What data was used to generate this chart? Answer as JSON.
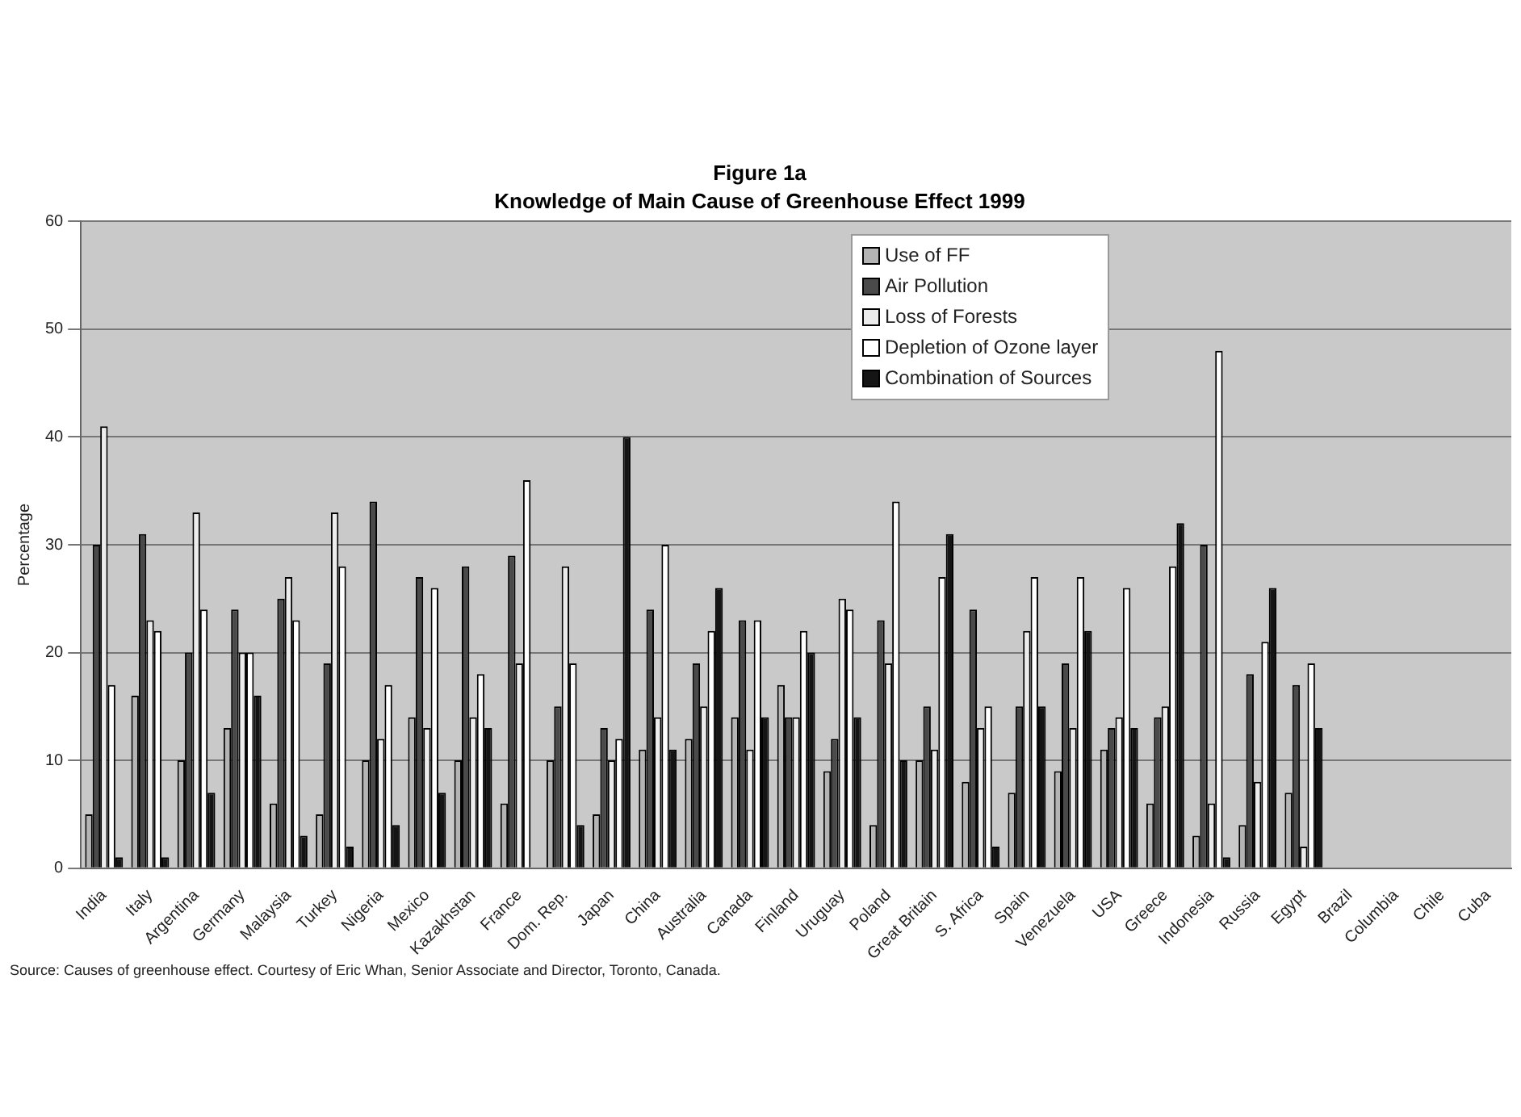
{
  "chart_data": {
    "type": "bar",
    "title": "Figure 1a",
    "subtitle": "Knowledge of Main Cause of Greenhouse Effect 1999",
    "ylabel": "Percentage",
    "categories": [
      "India",
      "Italy",
      "Argentina",
      "Germany",
      "Malaysia",
      "Turkey",
      "Nigeria",
      "Mexico",
      "Kazakhstan",
      "France",
      "Dom. Rep.",
      "Japan",
      "China",
      "Australia",
      "Canada",
      "Finland",
      "Uruguay",
      "Poland",
      "Great Britain",
      "S. Africa",
      "Spain",
      "Venezuela",
      "USA",
      "Greece",
      "Indonesia",
      "Russia",
      "Egypt",
      "Brazil",
      "Columbia",
      "Chile",
      "Cuba"
    ],
    "series": [
      {
        "name": "Use of FF",
        "color": "#b4b4b4",
        "values": [
          5,
          16,
          10,
          13,
          6,
          5,
          10,
          14,
          10,
          6,
          10,
          5,
          11,
          12,
          14,
          17,
          9,
          4,
          10,
          8,
          7,
          9,
          11,
          6,
          3,
          4,
          7,
          null,
          null,
          null,
          null
        ]
      },
      {
        "name": "Air Pollution",
        "color": "#4a4a4a",
        "values": [
          30,
          31,
          20,
          24,
          25,
          19,
          34,
          27,
          28,
          29,
          15,
          13,
          24,
          19,
          23,
          14,
          12,
          23,
          15,
          24,
          15,
          19,
          13,
          14,
          30,
          18,
          17,
          null,
          null,
          null,
          null
        ]
      },
      {
        "name": "Loss of Forests",
        "color": "#ececec",
        "values": [
          41,
          23,
          33,
          20,
          27,
          33,
          12,
          13,
          14,
          19,
          28,
          10,
          14,
          15,
          11,
          14,
          25,
          19,
          11,
          13,
          22,
          13,
          14,
          15,
          6,
          8,
          2,
          null,
          null,
          null,
          null
        ]
      },
      {
        "name": "Depletion of Ozone layer",
        "color": "#ffffff",
        "values": [
          17,
          22,
          24,
          20,
          23,
          28,
          17,
          26,
          18,
          36,
          19,
          12,
          30,
          22,
          23,
          22,
          24,
          34,
          27,
          15,
          27,
          27,
          26,
          28,
          48,
          21,
          19,
          null,
          null,
          null,
          null
        ]
      },
      {
        "name": "Combination of Sources",
        "color": "#151515",
        "values": [
          1,
          1,
          7,
          16,
          3,
          2,
          4,
          7,
          13,
          0,
          4,
          40,
          11,
          26,
          14,
          20,
          14,
          10,
          31,
          2,
          15,
          22,
          13,
          32,
          1,
          26,
          13,
          null,
          null,
          null,
          null
        ]
      }
    ],
    "ylim": [
      0,
      60
    ],
    "yticks": [
      0,
      10,
      20,
      30,
      40,
      50,
      60
    ],
    "grid": "y",
    "legend": "top right",
    "annotations": [
      "Source: Causes of greenhouse effect. Courtesy of Eric Whan, Senior Associate and Director, Toronto, Canada."
    ]
  }
}
